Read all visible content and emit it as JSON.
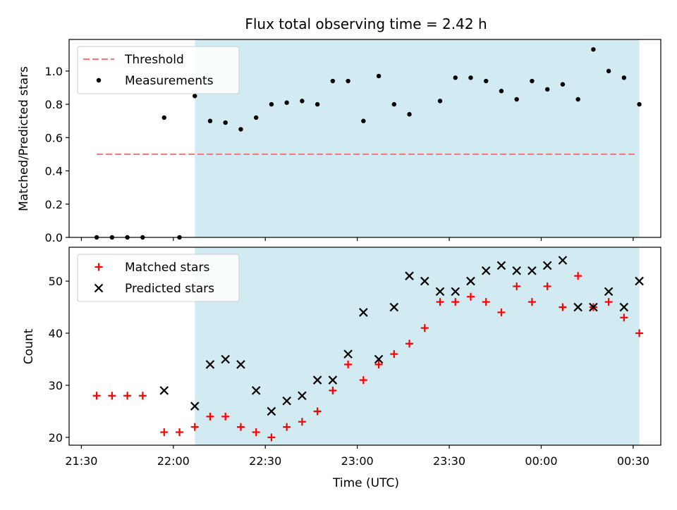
{
  "chart_data": {
    "title": "Flux total observing time = 2.42 h",
    "xlabel": "Time (UTC)",
    "x_ticks": [
      "21:30",
      "22:00",
      "22:30",
      "23:00",
      "23:30",
      "00:00",
      "00:30"
    ],
    "x_range": [
      "21:26",
      "00:39"
    ],
    "highlight_span": [
      "22:07",
      "00:32"
    ],
    "highlight_color": "#add8e6",
    "panels": [
      {
        "type": "scatter",
        "ylabel": "Matched/Predicted stars",
        "ylim": [
          0.0,
          1.19
        ],
        "y_ticks": [
          "0.0",
          "0.2",
          "0.4",
          "0.6",
          "0.8",
          "1.0"
        ],
        "legend": "top-left",
        "threshold": {
          "name": "Threshold",
          "value": 0.5,
          "x_range": [
            "21:35",
            "00:31"
          ],
          "color": "#f47c7c"
        },
        "series": [
          {
            "name": "Measurements",
            "marker": "dot",
            "color": "#000000",
            "x": [
              "21:35",
              "21:40",
              "21:45",
              "21:50",
              "21:57",
              "22:02",
              "22:07",
              "22:12",
              "22:17",
              "22:22",
              "22:27",
              "22:32",
              "22:37",
              "22:42",
              "22:47",
              "22:52",
              "22:57",
              "23:02",
              "23:07",
              "23:12",
              "23:17",
              "23:27",
              "23:32",
              "23:37",
              "23:42",
              "23:47",
              "23:52",
              "23:57",
              "24:02",
              "24:07",
              "24:12",
              "24:17",
              "24:22",
              "24:27",
              "24:32"
            ],
            "y": [
              0.0,
              0.0,
              0.0,
              0.0,
              0.72,
              0.0,
              0.85,
              0.7,
              0.69,
              0.65,
              0.72,
              0.8,
              0.81,
              0.82,
              0.8,
              0.94,
              0.94,
              0.7,
              0.97,
              0.8,
              0.74,
              0.82,
              0.96,
              0.96,
              0.94,
              0.88,
              0.83,
              0.94,
              0.89,
              0.92,
              0.83,
              1.13,
              1.0,
              0.96,
              0.8
            ]
          }
        ]
      },
      {
        "type": "scatter",
        "ylabel": "Count",
        "ylim": [
          18.5,
          56.5
        ],
        "y_ticks": [
          "20",
          "30",
          "40",
          "50"
        ],
        "legend": "top-left",
        "series": [
          {
            "name": "Matched stars",
            "marker": "plus",
            "color": "#ff0000",
            "x": [
              "21:35",
              "21:40",
              "21:45",
              "21:50",
              "21:57",
              "22:02",
              "22:07",
              "22:12",
              "22:17",
              "22:22",
              "22:27",
              "22:32",
              "22:37",
              "22:42",
              "22:47",
              "22:52",
              "22:57",
              "23:02",
              "23:07",
              "23:12",
              "23:17",
              "23:22",
              "23:27",
              "23:32",
              "23:37",
              "23:42",
              "23:47",
              "23:52",
              "23:57",
              "24:02",
              "24:07",
              "24:12",
              "24:17",
              "24:22",
              "24:27",
              "24:32"
            ],
            "y": [
              28,
              28,
              28,
              28,
              21,
              21,
              22,
              24,
              24,
              22,
              21,
              20,
              22,
              23,
              25,
              29,
              34,
              31,
              34,
              36,
              38,
              41,
              46,
              46,
              47,
              46,
              44,
              49,
              46,
              49,
              45,
              51,
              45,
              46,
              43,
              40
            ]
          },
          {
            "name": "Predicted stars",
            "marker": "x",
            "color": "#000000",
            "x": [
              "21:57",
              "22:07",
              "22:12",
              "22:17",
              "22:22",
              "22:27",
              "22:32",
              "22:37",
              "22:42",
              "22:47",
              "22:52",
              "22:57",
              "23:02",
              "23:07",
              "23:12",
              "23:17",
              "23:22",
              "23:27",
              "23:32",
              "23:37",
              "23:42",
              "23:47",
              "23:52",
              "23:57",
              "24:02",
              "24:07",
              "24:12",
              "24:17",
              "24:22",
              "24:27",
              "24:32"
            ],
            "y": [
              29,
              26,
              34,
              35,
              34,
              29,
              25,
              27,
              28,
              31,
              31,
              36,
              44,
              35,
              45,
              51,
              50,
              48,
              48,
              50,
              52,
              53,
              52,
              52,
              53,
              54,
              45,
              45,
              48,
              45,
              50
            ]
          }
        ]
      }
    ]
  }
}
